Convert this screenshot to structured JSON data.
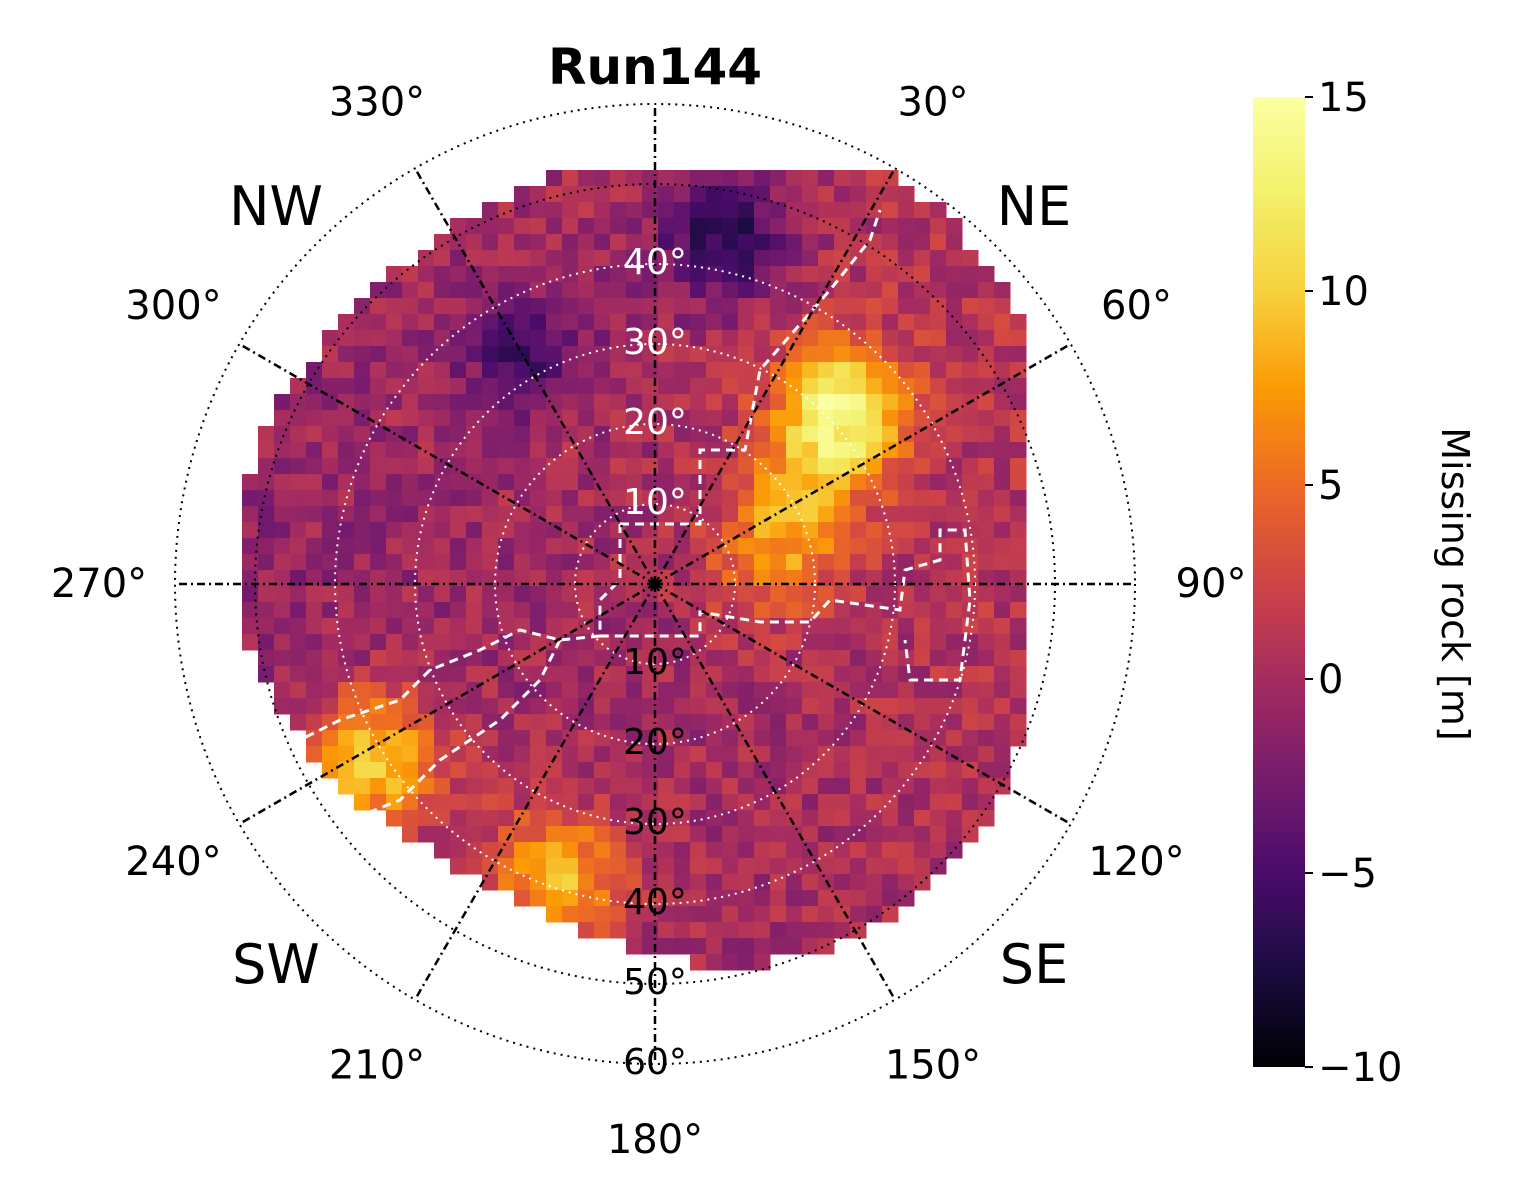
{
  "chart_data": {
    "type": "heatmap",
    "projection": "polar",
    "title": "Run144",
    "colorbar": {
      "label": "Missing rock [m]",
      "colormap": "inferno",
      "range": [
        -10,
        15
      ],
      "ticks": [
        {
          "value": 15,
          "label": "15"
        },
        {
          "value": 10,
          "label": "10"
        },
        {
          "value": 5,
          "label": "5"
        },
        {
          "value": 0,
          "label": "0"
        },
        {
          "value": -5,
          "label": "−5"
        },
        {
          "value": -10,
          "label": "−10"
        }
      ]
    },
    "angular_ticks": [
      {
        "deg": 30,
        "label": "30°"
      },
      {
        "deg": 60,
        "label": "60°"
      },
      {
        "deg": 90,
        "label": "90°"
      },
      {
        "deg": 120,
        "label": "120°"
      },
      {
        "deg": 150,
        "label": "150°"
      },
      {
        "deg": 180,
        "label": "180°"
      },
      {
        "deg": 210,
        "label": "210°"
      },
      {
        "deg": 240,
        "label": "240°"
      },
      {
        "deg": 270,
        "label": "270°"
      },
      {
        "deg": 300,
        "label": "300°"
      },
      {
        "deg": 330,
        "label": "330°"
      }
    ],
    "compass_labels": [
      {
        "deg": 45,
        "label": "NE"
      },
      {
        "deg": 135,
        "label": "SE"
      },
      {
        "deg": 225,
        "label": "SW"
      },
      {
        "deg": 315,
        "label": "NW"
      }
    ],
    "radial_ticks_upper": [
      {
        "r": 10,
        "label": "10°"
      },
      {
        "r": 20,
        "label": "20°"
      },
      {
        "r": 30,
        "label": "30°"
      },
      {
        "r": 40,
        "label": "40°"
      }
    ],
    "radial_ticks_lower": [
      {
        "r": 10,
        "label": "10°"
      },
      {
        "r": 20,
        "label": "20°"
      },
      {
        "r": 30,
        "label": "30°"
      },
      {
        "r": 40,
        "label": "40°"
      },
      {
        "r": 50,
        "label": "50°"
      },
      {
        "r": 60,
        "label": "60°"
      }
    ],
    "r_max": 60,
    "grid": true,
    "data_extent_deg": 55,
    "regions": [
      {
        "name": "northeast high",
        "center_deg": 45,
        "center_r": 32,
        "value": 14
      },
      {
        "name": "east mid",
        "center_deg": 70,
        "center_r": 15,
        "value": 7
      },
      {
        "name": "southwest band",
        "center_deg": 240,
        "center_r": 42,
        "value": 10
      },
      {
        "name": "south rim",
        "center_deg": 200,
        "center_r": 38,
        "value": 9
      },
      {
        "name": "north low",
        "center_deg": 10,
        "center_r": 45,
        "value": -7
      },
      {
        "name": "northwest low",
        "center_deg": 330,
        "center_r": 35,
        "value": -5
      }
    ]
  }
}
